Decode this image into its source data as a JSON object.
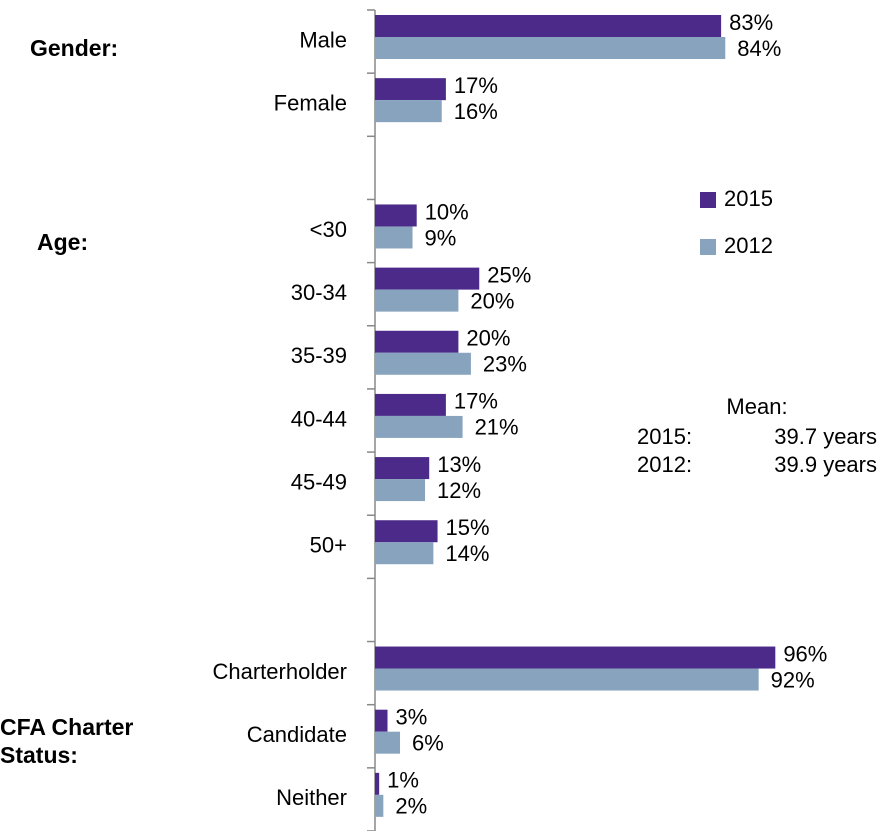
{
  "chart_data": {
    "type": "bar",
    "orientation": "horizontal",
    "categories": [
      "Male",
      "Female",
      null,
      "<30",
      "30-34",
      "35-39",
      "40-44",
      "45-49",
      "50+",
      null,
      "Charterholder",
      "Candidate",
      "Neither"
    ],
    "series": [
      {
        "name": "2015",
        "color": "#4b2a8a",
        "values": [
          83,
          17,
          null,
          10,
          25,
          20,
          17,
          13,
          15,
          null,
          96,
          3,
          1
        ],
        "value_labels": [
          "83%",
          "17%",
          null,
          "10%",
          "25%",
          "20%",
          "17%",
          "13%",
          "15%",
          null,
          "96%",
          "3%",
          "1%"
        ]
      },
      {
        "name": "2012",
        "color": "#87a3bd",
        "values": [
          84,
          16,
          null,
          9,
          20,
          23,
          21,
          12,
          14,
          null,
          92,
          6,
          2
        ],
        "value_labels": [
          "84%",
          "16%",
          null,
          "9%",
          "20%",
          "23%",
          "21%",
          "12%",
          "14%",
          null,
          "92%",
          "6%",
          "2%"
        ]
      }
    ],
    "group_labels": [
      "Gender:",
      "Age:",
      "CFA Charter Status:"
    ],
    "mean": {
      "title": "Mean:",
      "rows": [
        {
          "label": "2015:",
          "value": "39.7 years"
        },
        {
          "label": "2012:",
          "value": "39.9 years"
        }
      ]
    },
    "legend": "right"
  }
}
